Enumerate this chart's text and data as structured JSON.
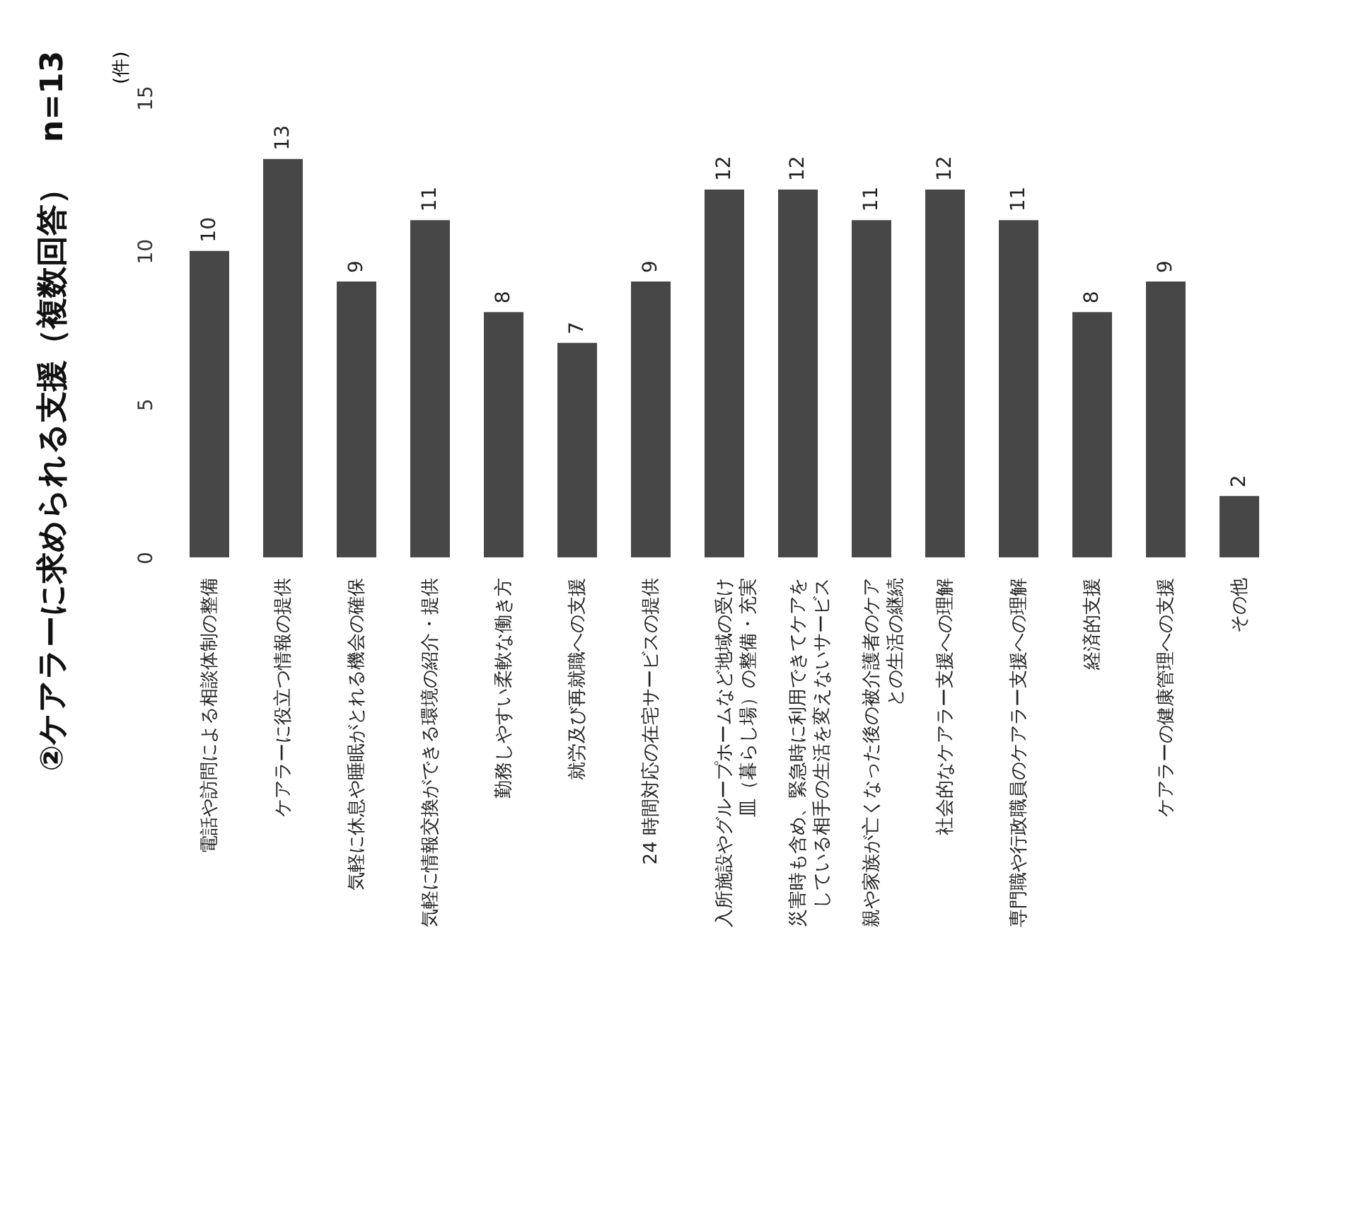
{
  "chart_data": {
    "type": "bar",
    "title": "②ケアラーに求められる支援（複数回答）　n=13",
    "ylabel": "(件)",
    "categories": [
      "電話や訪問による相談体制の整備",
      "ケアラーに役立つ情報の提供",
      "気軽に休息や睡眠がとれる機会の確保",
      "気軽に情報交換ができる環境の紹介・提供",
      "勤務しやすい柔軟な働き方",
      "就労及び再就職への支援",
      "24 時間対応の在宅サービスの提供",
      "入所施設やグループホームなど地域の受け皿（暮らし場）の整備・充実",
      "災害時も含め、緊急時に利用できてケアをしている相手の生活を変えないサービス",
      "親や家族が亡くなった後の被介護者のケアとの生活の継続",
      "社会的なケアラー支援への理解",
      "専門職や行政職員のケアラー支援への理解",
      "経済的支援",
      "ケアラーの健康管理への支援",
      "その他"
    ],
    "values": [
      10,
      13,
      9,
      11,
      8,
      7,
      9,
      12,
      12,
      11,
      12,
      11,
      8,
      9,
      2
    ],
    "color": "#474747",
    "ylim": [
      0,
      15
    ],
    "yticks": [
      0,
      5,
      10,
      15
    ],
    "data_labels": true
  }
}
